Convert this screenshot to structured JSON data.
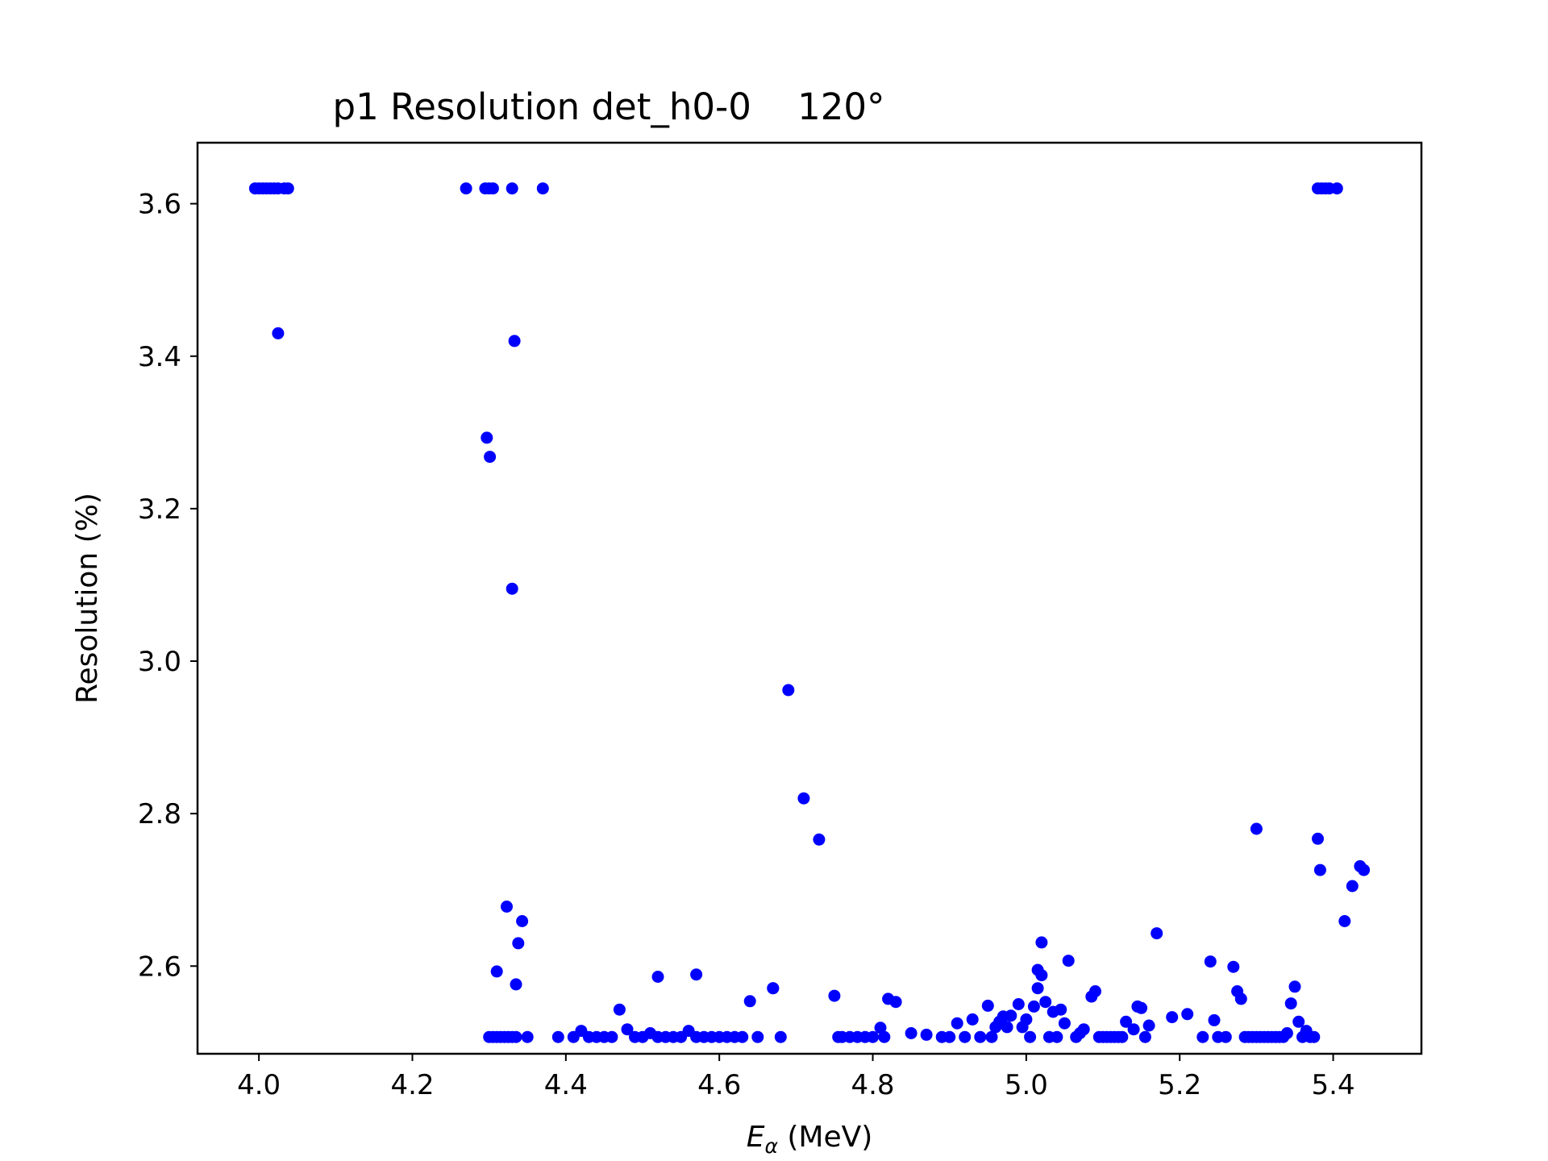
{
  "chart_data": {
    "type": "scatter",
    "title": "p1 Resolution det_h0-0    120°",
    "xlabel_symbol": "E",
    "xlabel_subscript": "α",
    "xlabel_unit": " (MeV)",
    "ylabel": "Resolution (%)",
    "xlim": [
      3.92,
      5.515
    ],
    "ylim": [
      2.485,
      3.68
    ],
    "xticks": [
      4.0,
      4.2,
      4.4,
      4.6,
      4.8,
      5.0,
      5.2,
      5.4
    ],
    "xtick_labels": [
      "4.0",
      "4.2",
      "4.4",
      "4.6",
      "4.8",
      "5.0",
      "5.2",
      "5.4"
    ],
    "yticks": [
      2.6,
      2.8,
      3.0,
      3.2,
      3.4,
      3.6
    ],
    "ytick_labels": [
      "2.6",
      "2.8",
      "3.0",
      "3.2",
      "3.4",
      "3.6"
    ],
    "grid": false,
    "marker_color": "#0000ff",
    "series": [
      {
        "x": [
          3.995,
          4.0,
          4.005,
          4.01,
          4.015,
          4.02,
          4.025,
          4.033,
          4.038,
          4.025,
          4.27,
          4.295,
          4.3,
          4.305,
          4.33,
          4.37,
          4.333,
          4.297,
          4.301,
          4.33,
          4.3,
          4.305,
          4.31,
          4.315,
          4.32,
          4.325,
          4.33,
          4.335,
          4.35,
          4.323,
          4.343,
          4.338,
          4.31,
          4.335,
          4.39,
          4.41,
          4.42,
          4.43,
          4.44,
          4.45,
          4.46,
          4.47,
          4.48,
          4.49,
          4.5,
          4.51,
          4.52,
          4.53,
          4.54,
          4.55,
          4.56,
          4.57,
          4.58,
          4.59,
          4.6,
          4.61,
          4.62,
          4.63,
          4.64,
          4.65,
          4.67,
          4.68,
          4.52,
          4.57,
          4.67,
          4.69,
          4.71,
          4.73,
          4.75,
          4.755,
          4.76,
          4.77,
          4.78,
          4.79,
          4.8,
          4.81,
          4.815,
          4.82,
          4.83,
          4.85,
          4.87,
          4.89,
          4.9,
          4.91,
          4.92,
          4.93,
          4.94,
          4.95,
          4.955,
          4.96,
          4.965,
          4.97,
          4.975,
          4.98,
          4.99,
          4.995,
          5.0,
          5.005,
          5.01,
          5.015,
          5.02,
          5.015,
          5.02,
          5.025,
          5.03,
          5.035,
          5.04,
          5.045,
          5.05,
          5.055,
          5.065,
          5.07,
          5.075,
          5.085,
          5.09,
          5.095,
          5.1,
          5.105,
          5.11,
          5.115,
          5.12,
          5.125,
          5.13,
          5.14,
          5.145,
          5.15,
          5.155,
          5.16,
          5.17,
          5.19,
          5.21,
          5.23,
          5.24,
          5.245,
          5.25,
          5.26,
          5.27,
          5.275,
          5.28,
          5.285,
          5.29,
          5.295,
          5.3,
          5.305,
          5.31,
          5.315,
          5.32,
          5.325,
          5.33,
          5.335,
          5.34,
          5.345,
          5.35,
          5.355,
          5.36,
          5.365,
          5.37,
          5.375,
          5.3,
          5.38,
          5.383,
          5.415,
          5.425,
          5.435,
          5.44,
          5.38,
          5.385,
          5.39,
          5.395,
          5.405
        ],
        "y": [
          3.62,
          3.62,
          3.62,
          3.62,
          3.62,
          3.62,
          3.62,
          3.62,
          3.62,
          3.43,
          3.62,
          3.62,
          3.62,
          3.62,
          3.62,
          3.62,
          3.42,
          3.293,
          3.268,
          3.095,
          2.507,
          2.507,
          2.507,
          2.507,
          2.507,
          2.507,
          2.507,
          2.507,
          2.507,
          2.678,
          2.659,
          2.63,
          2.593,
          2.576,
          2.507,
          2.507,
          2.515,
          2.507,
          2.507,
          2.507,
          2.507,
          2.543,
          2.517,
          2.507,
          2.507,
          2.512,
          2.507,
          2.507,
          2.507,
          2.507,
          2.515,
          2.507,
          2.507,
          2.507,
          2.507,
          2.507,
          2.507,
          2.507,
          2.554,
          2.507,
          2.571,
          2.507,
          2.586,
          2.589,
          2.571,
          2.962,
          2.82,
          2.766,
          2.561,
          2.507,
          2.507,
          2.507,
          2.507,
          2.507,
          2.507,
          2.519,
          2.507,
          2.557,
          2.553,
          2.512,
          2.51,
          2.507,
          2.507,
          2.525,
          2.507,
          2.53,
          2.507,
          2.548,
          2.507,
          2.52,
          2.527,
          2.534,
          2.52,
          2.535,
          2.55,
          2.52,
          2.53,
          2.507,
          2.547,
          2.595,
          2.631,
          2.571,
          2.588,
          2.553,
          2.507,
          2.54,
          2.507,
          2.543,
          2.525,
          2.607,
          2.507,
          2.512,
          2.517,
          2.56,
          2.567,
          2.507,
          2.507,
          2.507,
          2.507,
          2.507,
          2.507,
          2.507,
          2.527,
          2.517,
          2.547,
          2.545,
          2.507,
          2.522,
          2.643,
          2.533,
          2.537,
          2.507,
          2.606,
          2.529,
          2.507,
          2.507,
          2.599,
          2.567,
          2.557,
          2.507,
          2.507,
          2.507,
          2.507,
          2.507,
          2.507,
          2.507,
          2.507,
          2.507,
          2.507,
          2.507,
          2.512,
          2.551,
          2.573,
          2.527,
          2.507,
          2.515,
          2.507,
          2.507,
          2.78,
          2.767,
          2.726,
          2.659,
          2.705,
          2.731,
          2.726,
          3.62,
          3.62,
          3.62,
          3.62,
          3.62
        ]
      }
    ]
  }
}
